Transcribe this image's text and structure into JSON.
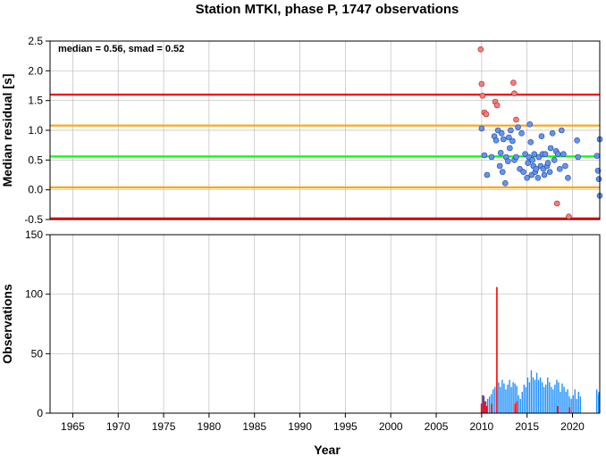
{
  "chart_data": [
    {
      "type": "scatter",
      "title": "Station MTKI, phase P, 1747 observations",
      "annotation": "median = 0.56, smad = 0.52",
      "xlabel": "",
      "ylabel": "Median residual [s]",
      "xlim": [
        1962.5,
        2023
      ],
      "ylim": [
        -0.5,
        2.5
      ],
      "y_ticks": [
        "-0.5",
        "0.0",
        "0.5",
        "1.0",
        "1.5",
        "2.0",
        "2.5"
      ],
      "grid": true,
      "reference_lines": [
        {
          "y": 1.6,
          "color": "#ff0000"
        },
        {
          "y": 1.08,
          "color": "#ffa500"
        },
        {
          "y": 0.56,
          "color": "#00ff00"
        },
        {
          "y": 0.04,
          "color": "#ffa500"
        },
        {
          "y": -0.48,
          "color": "#ff0000"
        }
      ],
      "series": [
        {
          "color": "#6495ed",
          "points": [
            [
              2010.0,
              1.03
            ],
            [
              2010.3,
              0.58
            ],
            [
              2010.6,
              0.25
            ],
            [
              2011.1,
              0.55
            ],
            [
              2011.4,
              0.9
            ],
            [
              2011.6,
              0.83
            ],
            [
              2011.8,
              1.0
            ],
            [
              2012.0,
              0.4
            ],
            [
              2012.1,
              0.62
            ],
            [
              2012.2,
              0.95
            ],
            [
              2012.3,
              0.3
            ],
            [
              2012.4,
              0.85
            ],
            [
              2012.6,
              0.11
            ],
            [
              2012.7,
              0.55
            ],
            [
              2012.9,
              0.48
            ],
            [
              2013.0,
              0.88
            ],
            [
              2013.1,
              0.7
            ],
            [
              2013.2,
              1.0
            ],
            [
              2013.4,
              0.82
            ],
            [
              2013.6,
              0.5
            ],
            [
              2013.8,
              0.55
            ],
            [
              2014.0,
              1.05
            ],
            [
              2014.2,
              0.35
            ],
            [
              2014.4,
              0.95
            ],
            [
              2014.6,
              0.3
            ],
            [
              2014.8,
              0.6
            ],
            [
              2015.0,
              0.2
            ],
            [
              2015.1,
              0.45
            ],
            [
              2015.2,
              0.55
            ],
            [
              2015.3,
              1.1
            ],
            [
              2015.4,
              0.8
            ],
            [
              2015.5,
              0.25
            ],
            [
              2015.6,
              0.5
            ],
            [
              2015.7,
              0.4
            ],
            [
              2015.8,
              0.6
            ],
            [
              2015.9,
              0.3
            ],
            [
              2016.0,
              0.35
            ],
            [
              2016.2,
              0.2
            ],
            [
              2016.3,
              0.55
            ],
            [
              2016.5,
              0.4
            ],
            [
              2016.6,
              0.9
            ],
            [
              2016.7,
              0.6
            ],
            [
              2016.8,
              0.35
            ],
            [
              2016.9,
              0.25
            ],
            [
              2017.0,
              0.6
            ],
            [
              2017.2,
              0.4
            ],
            [
              2017.3,
              0.45
            ],
            [
              2017.5,
              0.3
            ],
            [
              2017.6,
              0.7
            ],
            [
              2017.8,
              0.95
            ],
            [
              2018.0,
              0.5
            ],
            [
              2018.2,
              0.65
            ],
            [
              2018.4,
              0.6
            ],
            [
              2018.6,
              0.35
            ],
            [
              2018.8,
              1.0
            ],
            [
              2019.0,
              0.6
            ],
            [
              2019.2,
              0.4
            ],
            [
              2019.5,
              0.2
            ],
            [
              2020.5,
              0.83
            ],
            [
              2020.6,
              0.55
            ],
            [
              2022.7,
              0.57
            ],
            [
              2022.8,
              0.32
            ],
            [
              2022.9,
              0.18
            ],
            [
              2023.0,
              -0.1
            ],
            [
              2023.0,
              0.85
            ]
          ]
        },
        {
          "color": "#f08080",
          "points": [
            [
              2009.9,
              2.36
            ],
            [
              2010.0,
              1.78
            ],
            [
              2010.1,
              1.58
            ],
            [
              2010.3,
              1.3
            ],
            [
              2010.5,
              1.27
            ],
            [
              2011.5,
              1.48
            ],
            [
              2011.7,
              1.42
            ],
            [
              2013.5,
              1.8
            ],
            [
              2013.6,
              1.62
            ],
            [
              2013.8,
              1.18
            ],
            [
              2018.3,
              -0.23
            ],
            [
              2019.6,
              -0.45
            ]
          ]
        }
      ]
    },
    {
      "type": "bar",
      "xlabel": "Year",
      "ylabel": "Observations",
      "xlim": [
        1962.5,
        2023
      ],
      "ylim": [
        0,
        150
      ],
      "x_ticks": [
        "1965",
        "1970",
        "1975",
        "1980",
        "1985",
        "1990",
        "1995",
        "2000",
        "2005",
        "2010",
        "2015",
        "2020"
      ],
      "y_ticks": [
        "0",
        "50",
        "100",
        "150"
      ],
      "grid": true,
      "series": [
        {
          "color": "#1e90ff",
          "x": [
            2010.0,
            2010.2,
            2010.4,
            2010.6,
            2010.8,
            2011.0,
            2011.2,
            2011.4,
            2011.8,
            2012.0,
            2012.2,
            2012.4,
            2012.6,
            2012.8,
            2013.0,
            2013.2,
            2013.4,
            2013.6,
            2013.8,
            2014.0,
            2014.2,
            2014.4,
            2014.6,
            2014.8,
            2015.0,
            2015.2,
            2015.4,
            2015.6,
            2015.8,
            2016.0,
            2016.2,
            2016.4,
            2016.6,
            2016.8,
            2017.0,
            2017.2,
            2017.4,
            2017.6,
            2017.8,
            2018.0,
            2018.2,
            2018.4,
            2018.6,
            2018.8,
            2019.0,
            2019.2,
            2019.4,
            2019.6,
            2019.8,
            2020.0,
            2020.2,
            2020.4,
            2020.6,
            2020.8,
            2022.6,
            2022.8,
            2023.0
          ],
          "values": [
            15,
            14,
            10,
            12,
            14,
            16,
            20,
            22,
            26,
            22,
            28,
            25,
            20,
            24,
            28,
            22,
            26,
            25,
            23,
            15,
            12,
            18,
            24,
            22,
            30,
            26,
            36,
            30,
            28,
            34,
            28,
            30,
            26,
            22,
            24,
            30,
            26,
            22,
            20,
            24,
            28,
            26,
            18,
            25,
            22,
            18,
            20,
            14,
            12,
            15,
            20,
            12,
            18,
            14,
            20,
            16,
            18
          ]
        },
        {
          "color": "#ff0000",
          "x": [
            2009.9,
            2010.1,
            2010.3,
            2010.5,
            2011.0,
            2011.6,
            2013.6,
            2013.8,
            2018.3,
            2019.6
          ],
          "values": [
            8,
            15,
            10,
            6,
            8,
            106,
            8,
            10,
            6,
            5
          ]
        }
      ]
    }
  ]
}
